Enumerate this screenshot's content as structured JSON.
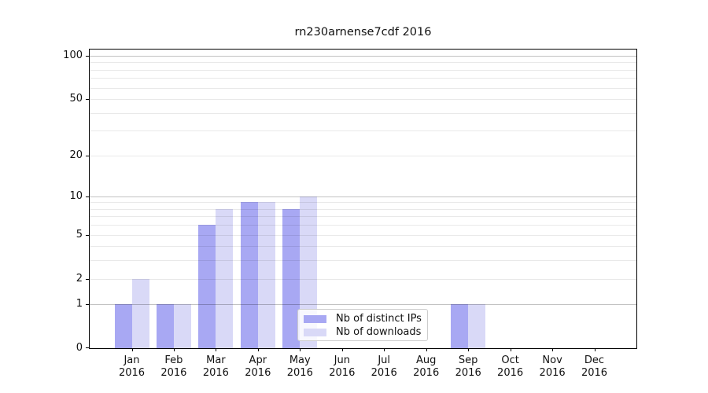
{
  "chart_data": {
    "type": "bar",
    "title": "rn230arnense7cdf 2016",
    "categories": [
      "Jan",
      "Feb",
      "Mar",
      "Apr",
      "May",
      "Jun",
      "Jul",
      "Aug",
      "Sep",
      "Oct",
      "Nov",
      "Dec"
    ],
    "category_year": "2016",
    "series": [
      {
        "name": "Nb of distinct IPs",
        "color": "#a8a8f3",
        "values": [
          1,
          1,
          6,
          9,
          8,
          0,
          0,
          0,
          1,
          0,
          0,
          0
        ]
      },
      {
        "name": "Nb of downloads",
        "color": "#d9d9f7",
        "values": [
          2,
          1,
          8,
          9,
          10,
          0,
          0,
          0,
          1,
          0,
          0,
          0
        ]
      }
    ],
    "xlabel": "",
    "ylabel": "",
    "yscale": "log1p",
    "ylim": [
      0,
      110.6
    ],
    "y_ticks": [
      {
        "value": 0,
        "label": "0"
      },
      {
        "value": 1,
        "label": "1"
      },
      {
        "value": 2,
        "label": "2"
      },
      {
        "value": 5,
        "label": "5"
      },
      {
        "value": 10,
        "label": "10"
      },
      {
        "value": 20,
        "label": "20"
      },
      {
        "value": 50,
        "label": "50"
      },
      {
        "value": 100,
        "label": "100"
      }
    ],
    "y_major_gridlines": [
      1,
      10,
      100
    ],
    "y_minor_gridlines": [
      2,
      3,
      4,
      5,
      6,
      7,
      8,
      9,
      20,
      30,
      40,
      50,
      60,
      70,
      80,
      90
    ],
    "grid": true,
    "legend": {
      "position": "lower center",
      "items": [
        "Nb of distinct IPs",
        "Nb of downloads"
      ]
    }
  },
  "colors": {
    "distinct_ips": "#a8a8f3",
    "downloads": "#d9d9f7",
    "major_grid": "#c2c2c2",
    "minor_grid": "#e9e9e9",
    "spine": "#000000",
    "background": "#ffffff"
  }
}
